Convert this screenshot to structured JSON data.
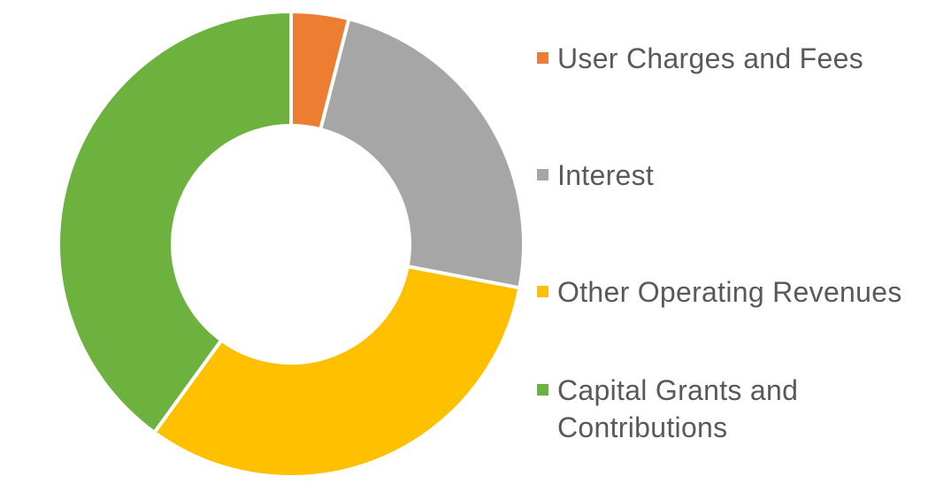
{
  "chart_data": {
    "type": "pie",
    "subtype": "donut",
    "title": "",
    "legend_position": "right",
    "hole_ratio": 0.51,
    "start_angle_deg": 0,
    "direction": "clockwise",
    "separator_color": "#FFFFFF",
    "background_color": "#FFFFFF",
    "text_color": "#595959",
    "series": [
      {
        "label": "User Charges and Fees",
        "value": 4,
        "color": "#ED7D31"
      },
      {
        "label": "Interest",
        "value": 24,
        "color": "#A6A6A6"
      },
      {
        "label": "Other Operating Revenues",
        "value": 32,
        "color": "#FFC000"
      },
      {
        "label": "Capital Grants and Contributions",
        "value": 40,
        "color": "#6DB23F"
      }
    ],
    "value_note": "percent of ring, estimated from arc angles; no data labels shown in image"
  }
}
